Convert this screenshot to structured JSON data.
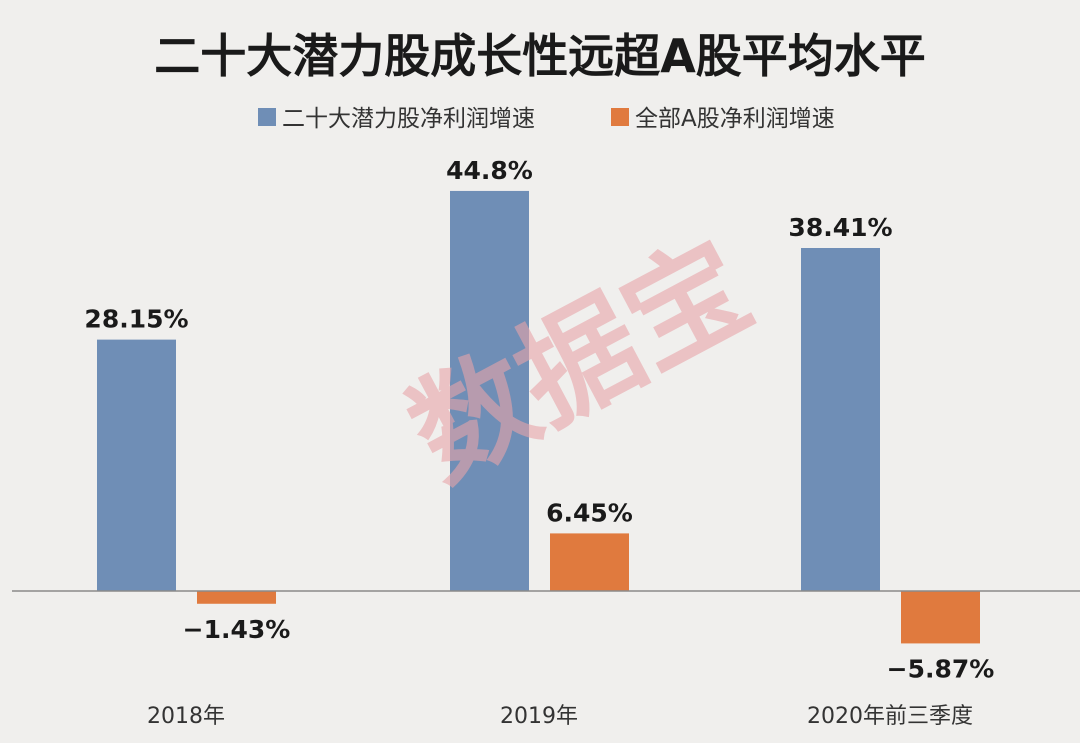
{
  "chart_data": {
    "type": "bar",
    "title": "二十大潜力股成长性远超A股平均水平",
    "categories": [
      "2018年",
      "2019年",
      "2020年前三季度"
    ],
    "series": [
      {
        "name": "二十大潜力股净利润增速",
        "color": "#6f8eb6",
        "values": [
          28.15,
          44.8,
          38.41
        ],
        "labels": [
          "28.15%",
          "44.8%",
          "38.41%"
        ]
      },
      {
        "name": "全部A股净利润增速",
        "color": "#e07a3e",
        "values": [
          -1.43,
          6.45,
          -5.87
        ],
        "labels": [
          "−1.43%",
          "6.45%",
          "−5.87%"
        ]
      }
    ],
    "ylim": [
      -7.5,
      50
    ],
    "grid": false,
    "legend_position": "top",
    "watermark": "数据宝",
    "watermark_color": "#e8a3a9"
  }
}
